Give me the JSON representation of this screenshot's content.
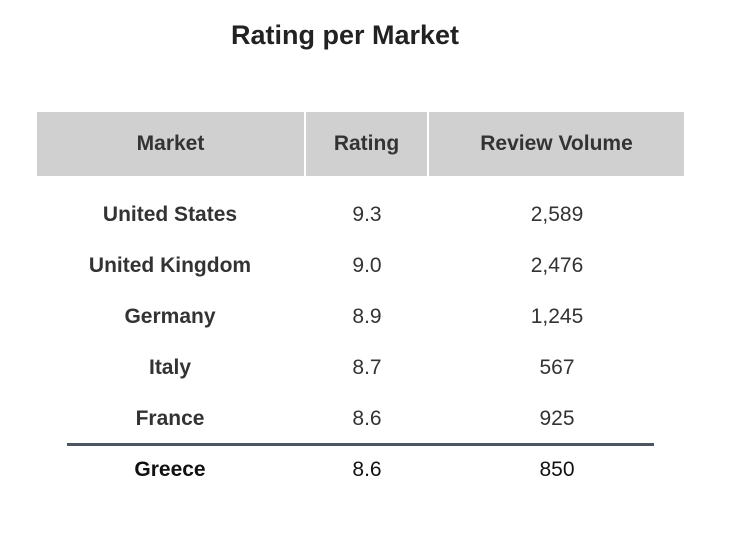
{
  "header": {
    "title": "Rating per Market"
  },
  "table": {
    "columns": [
      "Market",
      "Rating",
      "Review Volume"
    ],
    "rows": [
      [
        "United States",
        "9.3",
        "2,589"
      ],
      [
        "United Kingdom",
        "9.0",
        "2,476"
      ],
      [
        "Germany",
        "8.9",
        "1,245"
      ],
      [
        "Italy",
        "8.7",
        "567"
      ],
      [
        "France",
        "8.6",
        "925"
      ],
      [
        "Greece",
        "8.6",
        "850"
      ]
    ]
  }
}
